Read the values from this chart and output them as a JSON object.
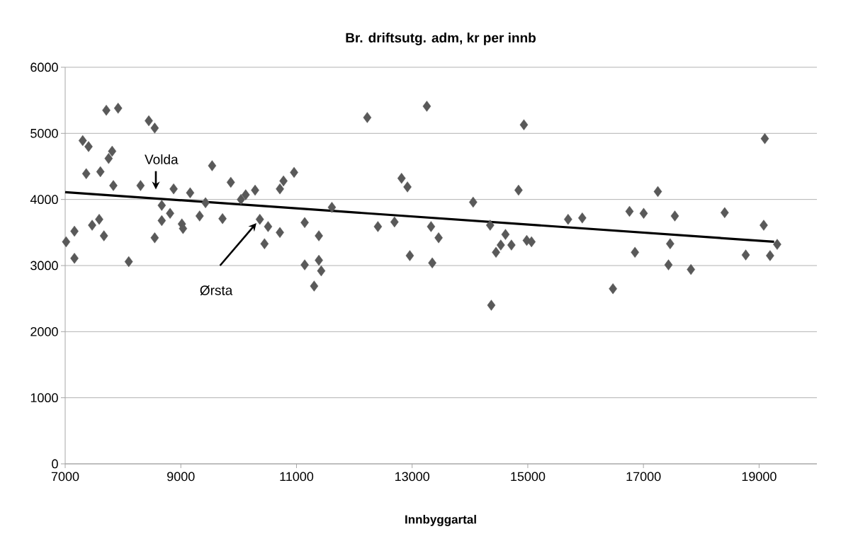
{
  "chart_data": {
    "type": "scatter",
    "title": "Br. driftsutg. adm, kr per innb",
    "xlabel": "Innbyggartal",
    "xlim": [
      7000,
      20000
    ],
    "xticks": [
      7000,
      9000,
      11000,
      13000,
      15000,
      17000,
      19000
    ],
    "ylim": [
      0,
      6000
    ],
    "yticks": [
      0,
      1000,
      2000,
      3000,
      4000,
      5000,
      6000
    ],
    "grid": "y",
    "legend": false,
    "marker": "diamond",
    "series": [
      {
        "type": "scatter",
        "color": "#595959",
        "x": [
          7016,
          7160,
          7160,
          7303,
          7404,
          7364,
          7466,
          7588,
          7609,
          7670,
          7711,
          7751,
          7812,
          7833,
          7915,
          8099,
          8303,
          8446,
          8548,
          8548,
          8670,
          8670,
          8814,
          8875,
          9018,
          9038,
          9161,
          9325,
          9427,
          9541,
          9721,
          9864,
          10039,
          10121,
          10284,
          10366,
          10509,
          10447,
          10713,
          10713,
          10775,
          10958,
          11142,
          11142,
          11387,
          11387,
          11428,
          11305,
          11612,
          12224,
          12408,
          12695,
          12817,
          12919,
          12960,
          13254,
          13327,
          13458,
          13348,
          14055,
          14349,
          14369,
          14450,
          14614,
          14533,
          14717,
          14840,
          14933,
          14982,
          15064,
          15697,
          15942,
          16473,
          16759,
          16853,
          17004,
          17249,
          17433,
          17462,
          17543,
          17821,
          18405,
          18769,
          19080,
          19099,
          19190,
          19313
        ],
        "values": [
          3360,
          3520,
          3110,
          4890,
          4800,
          4390,
          3610,
          3700,
          4420,
          3450,
          5350,
          4620,
          4730,
          4210,
          5380,
          3060,
          4210,
          5190,
          5080,
          3420,
          3910,
          3680,
          3790,
          4160,
          3630,
          3560,
          4100,
          3750,
          3950,
          4510,
          3710,
          4260,
          4000,
          4070,
          4140,
          3700,
          3590,
          3330,
          3500,
          4160,
          4280,
          4410,
          3650,
          3010,
          3450,
          3080,
          2920,
          2690,
          3880,
          5240,
          3590,
          3660,
          4320,
          4190,
          3150,
          5410,
          3590,
          3420,
          3040,
          3960,
          3610,
          2400,
          3200,
          3470,
          3310,
          3310,
          4140,
          5130,
          3380,
          3360,
          3700,
          3720,
          2650,
          3820,
          3200,
          3790,
          4120,
          3010,
          3330,
          3750,
          2940,
          3800,
          3160,
          3610,
          4920,
          3150,
          3320
        ]
      },
      {
        "type": "line",
        "color": "#000000",
        "marker": "none",
        "x": [
          7000,
          19260
        ],
        "values": [
          4110,
          3360
        ]
      }
    ],
    "annotations": [
      "Volda",
      "Ørsta"
    ]
  }
}
